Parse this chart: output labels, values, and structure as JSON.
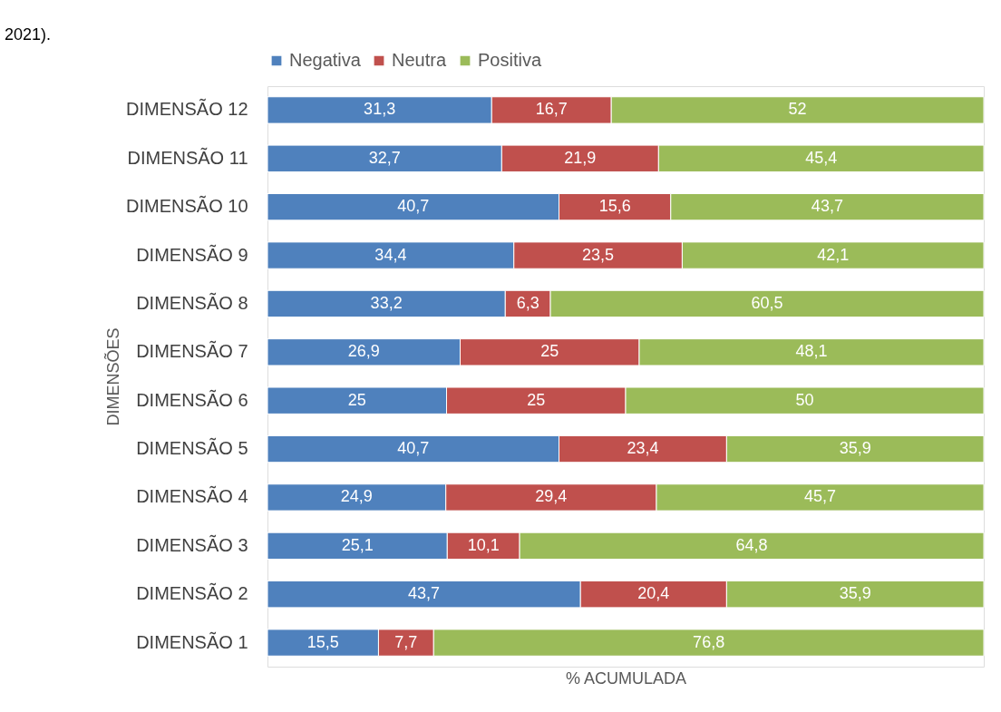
{
  "chart_data": {
    "type": "bar",
    "orientation": "horizontal",
    "stacked": true,
    "xlabel": "% ACUMULADA",
    "ylabel": "DIMENSÕES",
    "annotations": [
      "2021)."
    ],
    "categories": [
      "DIMENSÃO 12",
      "DIMENSÃO 11",
      "DIMENSÃO 10",
      "DIMENSÃO 9",
      "DIMENSÃO 8",
      "DIMENSÃO 7",
      "DIMENSÃO 6",
      "DIMENSÃO 5",
      "DIMENSÃO 4",
      "DIMENSÃO 3",
      "DIMENSÃO 2",
      "DIMENSÃO 1"
    ],
    "series": [
      {
        "name": "Negativa",
        "color": "#4f81bd",
        "values": [
          31.3,
          32.7,
          40.7,
          34.4,
          33.2,
          26.9,
          25,
          40.7,
          24.9,
          25.1,
          43.7,
          15.5
        ],
        "value_labels": [
          "31,3",
          "32,7",
          "40,7",
          "34,4",
          "33,2",
          "26,9",
          "25",
          "40,7",
          "24,9",
          "25,1",
          "43,7",
          "15,5"
        ]
      },
      {
        "name": "Neutra",
        "color": "#c0504d",
        "values": [
          16.7,
          21.9,
          15.6,
          23.5,
          6.3,
          25,
          25,
          23.4,
          29.4,
          10.1,
          20.4,
          7.7
        ],
        "value_labels": [
          "16,7",
          "21,9",
          "15,6",
          "23,5",
          "6,3",
          "25",
          "25",
          "23,4",
          "29,4",
          "10,1",
          "20,4",
          "7,7"
        ]
      },
      {
        "name": "Positiva",
        "color": "#9bbb59",
        "values": [
          52,
          45.4,
          43.7,
          42.1,
          60.5,
          48.1,
          50,
          35.9,
          45.7,
          64.8,
          35.9,
          76.8
        ],
        "value_labels": [
          "52",
          "45,4",
          "43,7",
          "42,1",
          "60,5",
          "48,1",
          "50",
          "35,9",
          "45,7",
          "64,8",
          "35,9",
          "76,8"
        ]
      }
    ],
    "xlim": [
      0,
      100
    ],
    "tick_labels": "y",
    "legend": "top"
  }
}
